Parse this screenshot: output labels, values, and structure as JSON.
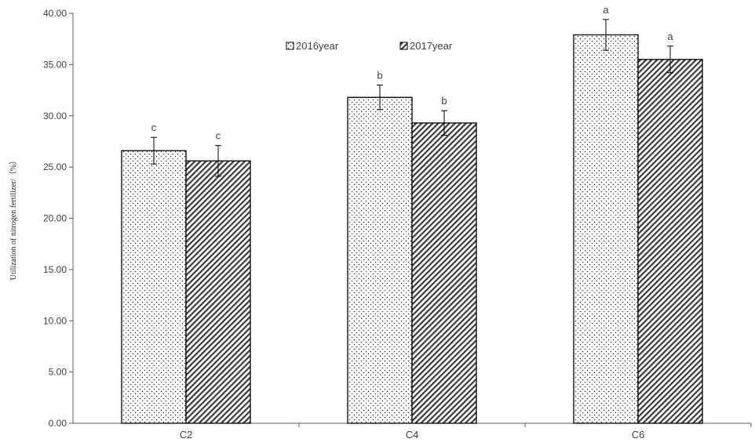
{
  "chart_data": {
    "type": "bar",
    "title": "",
    "xlabel": "",
    "ylabel": "Utilization of nitrogen fertilizer/（%）",
    "ylim": [
      0,
      40
    ],
    "yticks": [
      "0.00",
      "5.00",
      "10.00",
      "15.00",
      "20.00",
      "25.00",
      "30.00",
      "35.00",
      "40.00"
    ],
    "categories": [
      "C2",
      "C4",
      "C6"
    ],
    "series": [
      {
        "name": "2016year",
        "pattern": "dots",
        "values": [
          26.6,
          31.8,
          37.9
        ],
        "errors": [
          1.3,
          1.2,
          1.5
        ],
        "labels": [
          "c",
          "b",
          "a"
        ]
      },
      {
        "name": "2017year",
        "pattern": "diagonal-hatch",
        "values": [
          25.6,
          29.3,
          35.5
        ],
        "errors": [
          1.5,
          1.2,
          1.3
        ],
        "labels": [
          "c",
          "b",
          "a"
        ]
      }
    ],
    "legend_position": "top-center",
    "grid": false,
    "colors": {
      "bar_stroke": "#000000",
      "axis": "#595959",
      "text": "#404040"
    }
  }
}
